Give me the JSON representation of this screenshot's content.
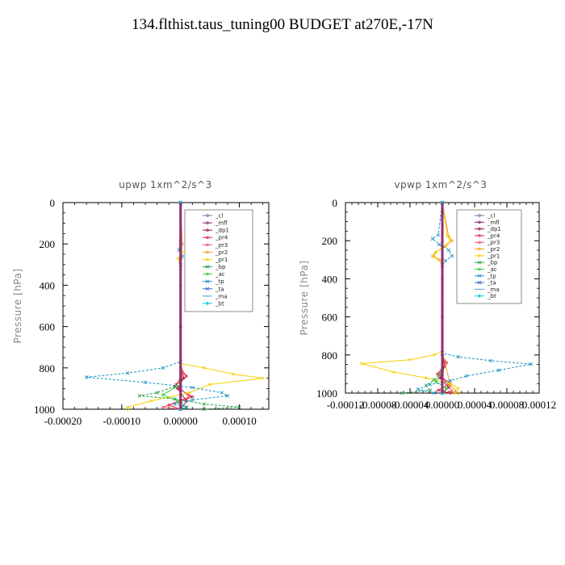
{
  "title": "134.flthist.taus_tuning00  BUDGET at270E,-17N",
  "chart_data": [
    {
      "type": "line",
      "title": "upwp   1xm^2/s^3",
      "ylabel": "Pressure [hPa]",
      "xlabel": "",
      "xlim": [
        -0.0002,
        0.00015
      ],
      "ylim": [
        1000,
        0
      ],
      "x_ticks": [
        "-0.00020",
        "-0.00010",
        "0.00000",
        "0.00010"
      ],
      "x_tick_values": [
        -0.0002,
        -0.0001,
        0,
        0.0001
      ],
      "y_ticks": [
        "0",
        "200",
        "400",
        "600",
        "800",
        "1000"
      ],
      "y_tick_values": [
        0,
        200,
        400,
        600,
        800,
        1000
      ],
      "legend_placement": "top-right",
      "series": [
        {
          "name": "_cl",
          "color": "#8b6aa8",
          "marker": "dot",
          "points": [
            [
              0,
              0
            ],
            [
              0,
              200
            ],
            [
              0,
              400
            ],
            [
              0,
              600
            ],
            [
              0,
              800
            ],
            [
              0,
              900
            ],
            [
              0,
              1000
            ]
          ]
        },
        {
          "name": "_mfl",
          "color": "#7b1f6e",
          "marker": "dot",
          "points": [
            [
              0,
              0
            ],
            [
              0,
              300
            ],
            [
              0,
              600
            ],
            [
              0,
              800
            ],
            [
              0,
              900
            ],
            [
              0,
              1000
            ]
          ]
        },
        {
          "name": "_dp1",
          "color": "#a01040",
          "marker": "dot",
          "points": [
            [
              0,
              0
            ],
            [
              0,
              800
            ],
            [
              5e-06,
              850
            ],
            [
              -5e-06,
              900
            ],
            [
              1e-05,
              960
            ],
            [
              0,
              1000
            ]
          ]
        },
        {
          "name": "_pr4",
          "color": "#d8203a",
          "marker": "dot",
          "points": [
            [
              0,
              0
            ],
            [
              0,
              800
            ],
            [
              1e-05,
              840
            ],
            [
              -1e-05,
              890
            ],
            [
              2e-05,
              940
            ],
            [
              -2e-05,
              980
            ],
            [
              0,
              1000
            ]
          ]
        },
        {
          "name": "_pr3",
          "color": "#f05060",
          "marker": "dot",
          "points": [
            [
              0,
              0
            ],
            [
              0,
              780
            ],
            [
              5e-06,
              830
            ],
            [
              -8e-06,
              880
            ],
            [
              1.5e-05,
              940
            ],
            [
              -3e-05,
              990
            ],
            [
              0,
              1000
            ]
          ]
        },
        {
          "name": "_pr2",
          "color": "#f0a020",
          "marker": "dot",
          "points": [
            [
              0,
              0
            ],
            [
              3e-06,
              200
            ],
            [
              0,
              300
            ],
            [
              0,
              800
            ],
            [
              0,
              1000
            ]
          ]
        },
        {
          "name": "_pr1",
          "color": "#f5d000",
          "marker": "dot",
          "points": [
            [
              0,
              0
            ],
            [
              0,
              180
            ],
            [
              3e-06,
              240
            ],
            [
              -4e-06,
              270
            ],
            [
              0,
              320
            ],
            [
              0,
              780
            ],
            [
              4e-05,
              800
            ],
            [
              9e-05,
              830
            ],
            [
              0.00014,
              850
            ],
            [
              5e-05,
              880
            ],
            [
              1.5e-05,
              920
            ],
            [
              -5e-05,
              960
            ],
            [
              -9e-05,
              990
            ],
            [
              -9e-05,
              1000
            ]
          ]
        },
        {
          "name": "_bp",
          "color": "#229944",
          "marker": "x",
          "points": [
            [
              0,
              0
            ],
            [
              0,
              860
            ],
            [
              -1e-05,
              890
            ],
            [
              -4e-05,
              920
            ],
            [
              -7e-05,
              935
            ],
            [
              -1e-05,
              950
            ],
            [
              4e-05,
              975
            ],
            [
              0.0001,
              990
            ],
            [
              4e-05,
              1000
            ]
          ]
        },
        {
          "name": "_ac",
          "color": "#33cc33",
          "marker": "dot",
          "points": [
            [
              0,
              0
            ],
            [
              0,
              880
            ],
            [
              -3e-05,
              930
            ],
            [
              -5e-06,
              960
            ],
            [
              1e-05,
              990
            ],
            [
              0,
              1000
            ]
          ]
        },
        {
          "name": "_tp",
          "color": "#1b8fbf",
          "marker": "x",
          "points": [
            [
              0,
              0
            ],
            [
              0,
              190
            ],
            [
              -3e-06,
              230
            ],
            [
              3e-06,
              260
            ],
            [
              0,
              300
            ],
            [
              0,
              770
            ],
            [
              -3e-05,
              800
            ],
            [
              -9e-05,
              825
            ],
            [
              -0.00016,
              845
            ],
            [
              -6e-05,
              870
            ],
            [
              2e-05,
              895
            ],
            [
              7e-05,
              920
            ],
            [
              8e-05,
              935
            ],
            [
              2e-05,
              955
            ],
            [
              -1e-05,
              975
            ],
            [
              1e-05,
              990
            ],
            [
              0,
              1000
            ]
          ]
        },
        {
          "name": "_ta",
          "color": "#3366cc",
          "marker": "x",
          "points": [
            [
              0,
              0
            ],
            [
              0,
              1000
            ]
          ]
        },
        {
          "name": "_ma",
          "color": "#5599cc",
          "marker": "dash",
          "points": [
            [
              0,
              0
            ],
            [
              0,
              1000
            ]
          ]
        },
        {
          "name": "_bt",
          "color": "#00d0e0",
          "marker": "diamond",
          "points": [
            [
              0,
              0
            ],
            [
              0,
              1000
            ]
          ]
        }
      ]
    },
    {
      "type": "line",
      "title": "vpwp   1xm^2/s^3",
      "ylabel": "Pressure [hPa]",
      "xlabel": "",
      "xlim": [
        -0.00012,
        0.00012
      ],
      "ylim": [
        1000,
        0
      ],
      "x_ticks": [
        "-0.00012",
        "-0.00008",
        "-0.00004",
        "0.00000",
        "0.00004",
        "0.00008",
        "0.00012"
      ],
      "x_tick_values": [
        -0.00012,
        -8e-05,
        -4e-05,
        0,
        4e-05,
        8e-05,
        0.00012
      ],
      "y_ticks": [
        "0",
        "200",
        "400",
        "600",
        "800",
        "1000"
      ],
      "y_tick_values": [
        0,
        200,
        400,
        600,
        800,
        1000
      ],
      "legend_placement": "top-right",
      "series": [
        {
          "name": "_cl",
          "color": "#8b6aa8",
          "marker": "dot",
          "points": [
            [
              0,
              0
            ],
            [
              0,
              200
            ],
            [
              0,
              400
            ],
            [
              0,
              600
            ],
            [
              0,
              800
            ],
            [
              0,
              900
            ],
            [
              0,
              1000
            ]
          ]
        },
        {
          "name": "_mfl",
          "color": "#7b1f6e",
          "marker": "dot",
          "points": [
            [
              0,
              0
            ],
            [
              0,
              300
            ],
            [
              0,
              600
            ],
            [
              0,
              800
            ],
            [
              0,
              900
            ],
            [
              0,
              1000
            ]
          ]
        },
        {
          "name": "_dp1",
          "color": "#a01040",
          "marker": "dot",
          "points": [
            [
              0,
              0
            ],
            [
              0,
              800
            ],
            [
              3e-06,
              860
            ],
            [
              -3e-06,
              920
            ],
            [
              8e-06,
              970
            ],
            [
              0,
              1000
            ]
          ]
        },
        {
          "name": "_pr4",
          "color": "#d8203a",
          "marker": "dot",
          "points": [
            [
              0,
              0
            ],
            [
              0,
              800
            ],
            [
              5e-06,
              840
            ],
            [
              -6e-06,
              900
            ],
            [
              1e-05,
              950
            ],
            [
              -5e-06,
              985
            ],
            [
              1e-05,
              1000
            ]
          ]
        },
        {
          "name": "_pr3",
          "color": "#f05060",
          "marker": "dot",
          "points": [
            [
              0,
              0
            ],
            [
              0,
              800
            ],
            [
              4e-06,
              850
            ],
            [
              -4e-06,
              900
            ],
            [
              8e-06,
              960
            ],
            [
              1.2e-05,
              990
            ],
            [
              0,
              1000
            ]
          ]
        },
        {
          "name": "_pr2",
          "color": "#f0a020",
          "marker": "dot",
          "points": [
            [
              0,
              0
            ],
            [
              8e-06,
              180
            ],
            [
              1.2e-05,
              200
            ],
            [
              4e-06,
              230
            ],
            [
              -8e-06,
              260
            ],
            [
              -1.2e-05,
              280
            ],
            [
              -4e-06,
              300
            ],
            [
              0,
              330
            ],
            [
              0,
              780
            ],
            [
              1e-05,
              960
            ],
            [
              2e-05,
              1000
            ]
          ]
        },
        {
          "name": "_pr1",
          "color": "#f5d000",
          "marker": "dot",
          "points": [
            [
              0,
              0
            ],
            [
              6e-06,
              170
            ],
            [
              1e-05,
              195
            ],
            [
              3e-06,
              230
            ],
            [
              -8e-06,
              260
            ],
            [
              -1e-05,
              285
            ],
            [
              0,
              320
            ],
            [
              0,
              780
            ],
            [
              -1e-05,
              800
            ],
            [
              -4e-05,
              825
            ],
            [
              -0.0001,
              845
            ],
            [
              -6e-05,
              890
            ],
            [
              -2e-05,
              920
            ],
            [
              1e-05,
              950
            ],
            [
              2e-05,
              975
            ],
            [
              1.5e-05,
              1000
            ]
          ]
        },
        {
          "name": "_bp",
          "color": "#229944",
          "marker": "x",
          "points": [
            [
              0,
              0
            ],
            [
              0,
              880
            ],
            [
              -1e-05,
              930
            ],
            [
              -2e-05,
              960
            ],
            [
              -1.5e-05,
              985
            ],
            [
              -5e-05,
              1000
            ]
          ]
        },
        {
          "name": "_ac",
          "color": "#33cc33",
          "marker": "dot",
          "points": [
            [
              0,
              0
            ],
            [
              0,
              880
            ],
            [
              -8e-06,
              940
            ],
            [
              5e-06,
              975
            ],
            [
              0,
              1000
            ]
          ]
        },
        {
          "name": "_tp",
          "color": "#1b8fbf",
          "marker": "x",
          "points": [
            [
              0,
              0
            ],
            [
              -5e-06,
              170
            ],
            [
              -1.2e-05,
              190
            ],
            [
              -4e-06,
              220
            ],
            [
              8e-06,
              250
            ],
            [
              1.2e-05,
              280
            ],
            [
              4e-06,
              305
            ],
            [
              0,
              330
            ],
            [
              0,
              790
            ],
            [
              2e-05,
              810
            ],
            [
              6e-05,
              830
            ],
            [
              0.00011,
              848
            ],
            [
              7e-05,
              880
            ],
            [
              3e-05,
              910
            ],
            [
              1e-05,
              935
            ],
            [
              -1.5e-05,
              955
            ],
            [
              -3e-05,
              980
            ],
            [
              -1e-05,
              1000
            ]
          ]
        },
        {
          "name": "_ta",
          "color": "#3366cc",
          "marker": "x",
          "points": [
            [
              0,
              0
            ],
            [
              0,
              1000
            ]
          ]
        },
        {
          "name": "_ma",
          "color": "#5599cc",
          "marker": "dash",
          "points": [
            [
              0,
              0
            ],
            [
              0,
              1000
            ]
          ]
        },
        {
          "name": "_bt",
          "color": "#00d0e0",
          "marker": "diamond",
          "points": [
            [
              0,
              0
            ],
            [
              0,
              1000
            ]
          ]
        }
      ]
    }
  ]
}
